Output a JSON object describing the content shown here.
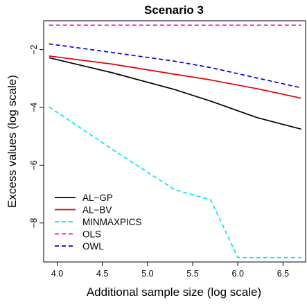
{
  "chart_data": {
    "type": "line",
    "title": "Scenario 3",
    "xlabel": "Additional sample size (log scale)",
    "ylabel": "Excess values (log scale)",
    "xlim": [
      3.85,
      6.75
    ],
    "ylim": [
      -9.35,
      -1.0
    ],
    "xticks": [
      4.0,
      4.5,
      5.0,
      5.5,
      6.0,
      6.5
    ],
    "xtick_labels": [
      "4.0",
      "4.5",
      "5.0",
      "5.5",
      "6.0",
      "6.5"
    ],
    "yticks": [
      -8,
      -6,
      -4,
      -2
    ],
    "ytick_labels": [
      "−8",
      "−6",
      "−4",
      "−2"
    ],
    "grid": false,
    "legend_position": "bottom-left",
    "series": [
      {
        "name": "AL−GP",
        "color": "#000000",
        "dash": "solid",
        "x": [
          3.91,
          4.61,
          5.3,
          5.7,
          6.21,
          6.7
        ],
        "y": [
          -2.28,
          -2.8,
          -3.38,
          -3.78,
          -4.35,
          -4.75
        ]
      },
      {
        "name": "AL−BV",
        "color": "#dd0000",
        "dash": "solid",
        "x": [
          3.91,
          4.61,
          5.3,
          5.7,
          6.21,
          6.7
        ],
        "y": [
          -2.22,
          -2.5,
          -2.85,
          -3.05,
          -3.35,
          -3.68
        ]
      },
      {
        "name": "MINMAXPICS",
        "color": "#00e5ee",
        "dash": "dashed",
        "x": [
          3.91,
          4.61,
          5.3,
          5.7,
          6.0,
          6.7
        ],
        "y": [
          -3.98,
          -5.45,
          -6.85,
          -7.2,
          -9.2,
          -9.2
        ]
      },
      {
        "name": "OLS",
        "color": "#ee00ee",
        "dash": "dashed",
        "x": [
          3.91,
          6.7
        ],
        "y": [
          -1.15,
          -1.15
        ]
      },
      {
        "name": "OWL",
        "color": "#0000cc",
        "dash": "dashed",
        "x": [
          3.91,
          4.61,
          5.3,
          5.7,
          6.21,
          6.7
        ],
        "y": [
          -1.8,
          -2.1,
          -2.4,
          -2.62,
          -2.98,
          -3.32
        ]
      }
    ]
  }
}
